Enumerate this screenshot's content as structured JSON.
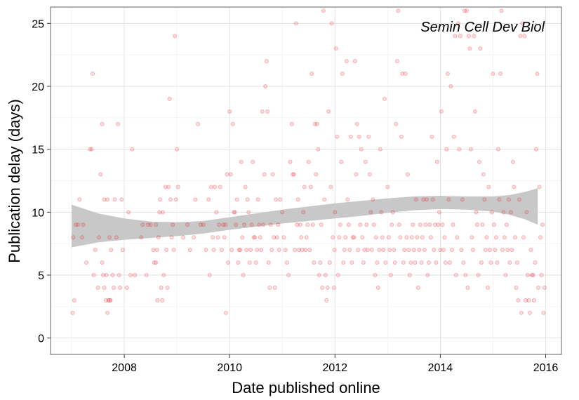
{
  "chart_data": {
    "type": "scatter",
    "title": "",
    "annotation": "Semin Cell Dev Biol",
    "xlabel": "Date published online",
    "ylabel": "Publication delay (days)",
    "xlim": [
      2006.6,
      2016.3
    ],
    "ylim": [
      -1.3,
      26.3
    ],
    "x_ticks": [
      2008,
      2010,
      2012,
      2014,
      2016
    ],
    "y_ticks": [
      0,
      5,
      10,
      15,
      20,
      25
    ],
    "grid": true,
    "point_color": "#e8202a",
    "smooth_band_color": "#c8c8c8",
    "smooth_band": [
      {
        "x": 2007.0,
        "lower": 7.2,
        "upper": 10.6
      },
      {
        "x": 2007.5,
        "lower": 7.6,
        "upper": 9.9
      },
      {
        "x": 2008.0,
        "lower": 7.8,
        "upper": 9.5
      },
      {
        "x": 2008.5,
        "lower": 7.95,
        "upper": 9.25
      },
      {
        "x": 2009.0,
        "lower": 8.1,
        "upper": 9.2
      },
      {
        "x": 2009.5,
        "lower": 8.3,
        "upper": 9.3
      },
      {
        "x": 2010.0,
        "lower": 8.6,
        "upper": 9.6
      },
      {
        "x": 2010.5,
        "lower": 8.85,
        "upper": 9.9
      },
      {
        "x": 2011.0,
        "lower": 9.1,
        "upper": 10.2
      },
      {
        "x": 2011.5,
        "lower": 9.3,
        "upper": 10.45
      },
      {
        "x": 2012.0,
        "lower": 9.5,
        "upper": 10.7
      },
      {
        "x": 2012.5,
        "lower": 9.7,
        "upper": 10.9
      },
      {
        "x": 2013.0,
        "lower": 9.95,
        "upper": 11.1
      },
      {
        "x": 2013.5,
        "lower": 10.15,
        "upper": 11.25
      },
      {
        "x": 2014.0,
        "lower": 10.25,
        "upper": 11.3
      },
      {
        "x": 2014.5,
        "lower": 10.2,
        "upper": 11.25
      },
      {
        "x": 2015.0,
        "lower": 10.05,
        "upper": 11.25
      },
      {
        "x": 2015.3,
        "lower": 9.8,
        "upper": 11.35
      },
      {
        "x": 2015.6,
        "lower": 9.45,
        "upper": 11.6
      },
      {
        "x": 2015.85,
        "lower": 9.0,
        "upper": 11.9
      }
    ],
    "points": [
      [
        2007.02,
        2
      ],
      [
        2007.05,
        3
      ],
      [
        2007.03,
        8
      ],
      [
        2007.08,
        9
      ],
      [
        2007.12,
        9
      ],
      [
        2007.15,
        11
      ],
      [
        2007.2,
        8
      ],
      [
        2007.22,
        9
      ],
      [
        2007.28,
        6
      ],
      [
        2007.35,
        15
      ],
      [
        2007.38,
        15
      ],
      [
        2007.4,
        21
      ],
      [
        2007.42,
        5
      ],
      [
        2007.45,
        7
      ],
      [
        2007.5,
        4
      ],
      [
        2007.52,
        8
      ],
      [
        2007.55,
        13
      ],
      [
        2007.58,
        17
      ],
      [
        2007.6,
        5
      ],
      [
        2007.62,
        4
      ],
      [
        2007.65,
        3
      ],
      [
        2007.68,
        2
      ],
      [
        2007.7,
        3
      ],
      [
        2007.72,
        3
      ],
      [
        2007.74,
        3
      ],
      [
        2007.75,
        7
      ],
      [
        2007.78,
        5
      ],
      [
        2007.8,
        4
      ],
      [
        2007.82,
        11
      ],
      [
        2007.85,
        8
      ],
      [
        2007.88,
        17
      ],
      [
        2007.9,
        5
      ],
      [
        2007.92,
        4
      ],
      [
        2007.95,
        11
      ],
      [
        2007.97,
        7
      ],
      [
        2007.62,
        11
      ],
      [
        2007.68,
        11
      ],
      [
        2007.72,
        8
      ],
      [
        2007.66,
        5
      ],
      [
        2007.58,
        6
      ],
      [
        2008.05,
        4
      ],
      [
        2008.08,
        10
      ],
      [
        2008.12,
        5
      ],
      [
        2008.15,
        15
      ],
      [
        2008.2,
        5
      ],
      [
        2008.32,
        8
      ],
      [
        2008.35,
        9
      ],
      [
        2008.42,
        5
      ],
      [
        2008.45,
        9
      ],
      [
        2008.5,
        9
      ],
      [
        2008.55,
        7
      ],
      [
        2008.57,
        6
      ],
      [
        2008.6,
        6
      ],
      [
        2008.62,
        7
      ],
      [
        2008.63,
        3
      ],
      [
        2008.65,
        8
      ],
      [
        2008.68,
        11
      ],
      [
        2008.7,
        4
      ],
      [
        2008.72,
        3
      ],
      [
        2008.75,
        5
      ],
      [
        2008.78,
        12
      ],
      [
        2008.8,
        7
      ],
      [
        2008.82,
        4
      ],
      [
        2008.84,
        12
      ],
      [
        2008.86,
        19
      ],
      [
        2008.88,
        11
      ],
      [
        2008.9,
        8
      ],
      [
        2008.92,
        9
      ],
      [
        2008.94,
        7
      ],
      [
        2008.96,
        24
      ],
      [
        2008.98,
        11
      ],
      [
        2009.0,
        15
      ],
      [
        2009.02,
        12
      ],
      [
        2008.6,
        9
      ],
      [
        2008.67,
        10
      ],
      [
        2008.73,
        10
      ],
      [
        2009.12,
        8
      ],
      [
        2009.2,
        9
      ],
      [
        2009.25,
        7
      ],
      [
        2009.32,
        8
      ],
      [
        2009.35,
        11
      ],
      [
        2009.4,
        17
      ],
      [
        2009.45,
        9
      ],
      [
        2009.5,
        9
      ],
      [
        2009.55,
        7
      ],
      [
        2009.6,
        11
      ],
      [
        2009.62,
        5
      ],
      [
        2009.65,
        12
      ],
      [
        2009.68,
        8
      ],
      [
        2009.7,
        7
      ],
      [
        2009.72,
        12
      ],
      [
        2009.75,
        10
      ],
      [
        2009.78,
        8
      ],
      [
        2009.8,
        9
      ],
      [
        2009.82,
        12
      ],
      [
        2009.85,
        7
      ],
      [
        2009.88,
        9
      ],
      [
        2009.9,
        8
      ],
      [
        2009.92,
        9
      ],
      [
        2009.93,
        2
      ],
      [
        2009.95,
        13
      ],
      [
        2009.97,
        6
      ],
      [
        2010.0,
        18
      ],
      [
        2010.02,
        13
      ],
      [
        2010.04,
        7
      ],
      [
        2010.06,
        17
      ],
      [
        2010.08,
        10
      ],
      [
        2010.1,
        10
      ],
      [
        2010.12,
        9
      ],
      [
        2010.14,
        11
      ],
      [
        2010.16,
        6
      ],
      [
        2010.18,
        7
      ],
      [
        2010.2,
        7
      ],
      [
        2010.22,
        14
      ],
      [
        2010.24,
        8
      ],
      [
        2010.26,
        5
      ],
      [
        2010.28,
        9
      ],
      [
        2010.3,
        12
      ],
      [
        2010.32,
        7
      ],
      [
        2010.34,
        11
      ],
      [
        2010.36,
        10
      ],
      [
        2010.38,
        6
      ],
      [
        2010.4,
        7
      ],
      [
        2010.42,
        9
      ],
      [
        2010.44,
        14
      ],
      [
        2010.46,
        8
      ],
      [
        2010.48,
        8
      ],
      [
        2010.5,
        6
      ],
      [
        2010.52,
        7
      ],
      [
        2010.54,
        11
      ],
      [
        2010.56,
        9
      ],
      [
        2010.58,
        8
      ],
      [
        2010.6,
        7
      ],
      [
        2010.62,
        18
      ],
      [
        2010.64,
        9
      ],
      [
        2010.66,
        13
      ],
      [
        2010.68,
        20
      ],
      [
        2010.7,
        22
      ],
      [
        2010.72,
        18
      ],
      [
        2010.74,
        6
      ],
      [
        2010.76,
        4
      ],
      [
        2010.78,
        9
      ],
      [
        2010.8,
        7
      ],
      [
        2010.82,
        13
      ],
      [
        2010.84,
        8
      ],
      [
        2010.86,
        4
      ],
      [
        2010.88,
        11
      ],
      [
        2010.9,
        8
      ],
      [
        2010.92,
        9
      ],
      [
        2010.94,
        7
      ],
      [
        2010.96,
        11
      ],
      [
        2011.0,
        10
      ],
      [
        2011.03,
        8
      ],
      [
        2011.06,
        7
      ],
      [
        2011.09,
        6
      ],
      [
        2011.12,
        5
      ],
      [
        2011.15,
        14
      ],
      [
        2011.18,
        17
      ],
      [
        2011.2,
        13
      ],
      [
        2011.22,
        13
      ],
      [
        2011.24,
        7
      ],
      [
        2011.26,
        25
      ],
      [
        2011.28,
        9
      ],
      [
        2011.3,
        11
      ],
      [
        2011.32,
        7
      ],
      [
        2011.34,
        9
      ],
      [
        2011.36,
        8
      ],
      [
        2011.38,
        7
      ],
      [
        2011.4,
        10
      ],
      [
        2011.42,
        12
      ],
      [
        2011.44,
        7
      ],
      [
        2011.46,
        8
      ],
      [
        2011.48,
        9
      ],
      [
        2011.5,
        14
      ],
      [
        2011.52,
        7
      ],
      [
        2011.54,
        12
      ],
      [
        2011.56,
        21
      ],
      [
        2011.58,
        9
      ],
      [
        2011.6,
        6
      ],
      [
        2011.62,
        17
      ],
      [
        2011.64,
        13
      ],
      [
        2011.66,
        17
      ],
      [
        2011.68,
        15
      ],
      [
        2011.7,
        5
      ],
      [
        2011.72,
        6
      ],
      [
        2011.74,
        9
      ],
      [
        2011.76,
        4
      ],
      [
        2011.78,
        26
      ],
      [
        2011.8,
        11
      ],
      [
        2011.82,
        5
      ],
      [
        2011.84,
        3
      ],
      [
        2011.86,
        4
      ],
      [
        2011.88,
        18
      ],
      [
        2011.9,
        6
      ],
      [
        2011.92,
        12
      ],
      [
        2011.94,
        25
      ],
      [
        2011.96,
        8
      ],
      [
        2011.98,
        4
      ],
      [
        2011.99,
        7
      ],
      [
        2012.0,
        10
      ],
      [
        2012.02,
        23
      ],
      [
        2012.04,
        16
      ],
      [
        2012.06,
        5
      ],
      [
        2012.08,
        8
      ],
      [
        2012.1,
        9
      ],
      [
        2012.12,
        14
      ],
      [
        2012.14,
        21
      ],
      [
        2012.16,
        6
      ],
      [
        2012.18,
        7
      ],
      [
        2012.2,
        8
      ],
      [
        2012.22,
        22
      ],
      [
        2012.24,
        11
      ],
      [
        2012.26,
        9
      ],
      [
        2012.28,
        7
      ],
      [
        2012.3,
        16
      ],
      [
        2012.32,
        6
      ],
      [
        2012.34,
        8
      ],
      [
        2012.36,
        8
      ],
      [
        2012.38,
        22
      ],
      [
        2012.4,
        13
      ],
      [
        2012.42,
        17
      ],
      [
        2012.44,
        7
      ],
      [
        2012.46,
        16
      ],
      [
        2012.48,
        9
      ],
      [
        2012.5,
        15
      ],
      [
        2012.52,
        8
      ],
      [
        2012.54,
        6
      ],
      [
        2012.56,
        7
      ],
      [
        2012.58,
        14
      ],
      [
        2012.6,
        9
      ],
      [
        2012.62,
        7
      ],
      [
        2012.64,
        16
      ],
      [
        2012.66,
        13
      ],
      [
        2012.68,
        10
      ],
      [
        2012.7,
        7
      ],
      [
        2012.72,
        11
      ],
      [
        2012.74,
        9
      ],
      [
        2012.76,
        5
      ],
      [
        2012.78,
        8
      ],
      [
        2012.8,
        6
      ],
      [
        2012.82,
        4
      ],
      [
        2012.84,
        7
      ],
      [
        2012.86,
        15
      ],
      [
        2012.88,
        10
      ],
      [
        2012.9,
        8
      ],
      [
        2012.92,
        7
      ],
      [
        2012.94,
        19
      ],
      [
        2012.96,
        6
      ],
      [
        2013.0,
        12
      ],
      [
        2013.02,
        8
      ],
      [
        2013.04,
        7
      ],
      [
        2013.06,
        5
      ],
      [
        2013.08,
        9
      ],
      [
        2013.1,
        10
      ],
      [
        2013.12,
        7
      ],
      [
        2013.14,
        6
      ],
      [
        2013.16,
        17
      ],
      [
        2013.18,
        22
      ],
      [
        2013.2,
        26
      ],
      [
        2013.22,
        9
      ],
      [
        2013.24,
        8
      ],
      [
        2013.26,
        16
      ],
      [
        2013.28,
        21
      ],
      [
        2013.3,
        6
      ],
      [
        2013.32,
        7
      ],
      [
        2013.34,
        21
      ],
      [
        2013.36,
        8
      ],
      [
        2013.38,
        13
      ],
      [
        2013.4,
        7
      ],
      [
        2013.42,
        5
      ],
      [
        2013.44,
        6
      ],
      [
        2013.46,
        8
      ],
      [
        2013.48,
        9
      ],
      [
        2013.5,
        7
      ],
      [
        2013.52,
        6
      ],
      [
        2013.54,
        11
      ],
      [
        2013.56,
        8
      ],
      [
        2013.58,
        4
      ],
      [
        2013.6,
        7
      ],
      [
        2013.62,
        9
      ],
      [
        2013.64,
        6
      ],
      [
        2013.66,
        8
      ],
      [
        2013.68,
        11
      ],
      [
        2013.7,
        7
      ],
      [
        2013.72,
        9
      ],
      [
        2013.74,
        11
      ],
      [
        2013.76,
        5
      ],
      [
        2013.78,
        6
      ],
      [
        2013.8,
        9
      ],
      [
        2013.82,
        8
      ],
      [
        2013.84,
        16
      ],
      [
        2013.86,
        11
      ],
      [
        2013.88,
        7
      ],
      [
        2013.9,
        9
      ],
      [
        2013.92,
        6
      ],
      [
        2013.94,
        14
      ],
      [
        2013.96,
        9
      ],
      [
        2013.98,
        10
      ],
      [
        2014.0,
        7
      ],
      [
        2014.02,
        18
      ],
      [
        2014.04,
        9
      ],
      [
        2014.06,
        7
      ],
      [
        2014.08,
        8
      ],
      [
        2014.1,
        6
      ],
      [
        2014.12,
        15
      ],
      [
        2014.14,
        21
      ],
      [
        2014.16,
        11
      ],
      [
        2014.18,
        6
      ],
      [
        2014.2,
        20
      ],
      [
        2014.22,
        7
      ],
      [
        2014.24,
        9
      ],
      [
        2014.26,
        16
      ],
      [
        2014.28,
        24
      ],
      [
        2014.3,
        5
      ],
      [
        2014.32,
        8
      ],
      [
        2014.34,
        25
      ],
      [
        2014.36,
        15
      ],
      [
        2014.38,
        24
      ],
      [
        2014.4,
        7
      ],
      [
        2014.42,
        11
      ],
      [
        2014.44,
        6
      ],
      [
        2014.46,
        26
      ],
      [
        2014.48,
        5
      ],
      [
        2014.5,
        26
      ],
      [
        2014.52,
        4
      ],
      [
        2014.54,
        24
      ],
      [
        2014.56,
        23
      ],
      [
        2014.58,
        15
      ],
      [
        2014.6,
        8
      ],
      [
        2014.62,
        7
      ],
      [
        2014.64,
        24
      ],
      [
        2014.66,
        18
      ],
      [
        2014.68,
        10
      ],
      [
        2014.7,
        9
      ],
      [
        2014.72,
        5
      ],
      [
        2014.74,
        14
      ],
      [
        2014.76,
        23
      ],
      [
        2014.78,
        6
      ],
      [
        2014.8,
        9
      ],
      [
        2014.82,
        13
      ],
      [
        2014.84,
        11
      ],
      [
        2014.86,
        7
      ],
      [
        2014.88,
        8
      ],
      [
        2014.9,
        4
      ],
      [
        2014.92,
        12
      ],
      [
        2014.94,
        7
      ],
      [
        2014.96,
        6
      ],
      [
        2014.98,
        10
      ],
      [
        2015.0,
        21
      ],
      [
        2015.02,
        9
      ],
      [
        2015.04,
        7
      ],
      [
        2015.06,
        8
      ],
      [
        2015.08,
        6
      ],
      [
        2015.1,
        15
      ],
      [
        2015.12,
        11
      ],
      [
        2015.14,
        21
      ],
      [
        2015.16,
        26
      ],
      [
        2015.18,
        7
      ],
      [
        2015.2,
        10
      ],
      [
        2015.22,
        8
      ],
      [
        2015.24,
        5
      ],
      [
        2015.26,
        9
      ],
      [
        2015.28,
        7
      ],
      [
        2015.3,
        11
      ],
      [
        2015.32,
        6
      ],
      [
        2015.34,
        10
      ],
      [
        2015.36,
        7
      ],
      [
        2015.38,
        14
      ],
      [
        2015.4,
        12
      ],
      [
        2015.42,
        8
      ],
      [
        2015.44,
        4
      ],
      [
        2015.46,
        6
      ],
      [
        2015.48,
        3
      ],
      [
        2015.5,
        11
      ],
      [
        2015.52,
        24
      ],
      [
        2015.54,
        2
      ],
      [
        2015.56,
        25
      ],
      [
        2015.58,
        8
      ],
      [
        2015.6,
        24
      ],
      [
        2015.62,
        3
      ],
      [
        2015.64,
        10
      ],
      [
        2015.66,
        5
      ],
      [
        2015.68,
        3
      ],
      [
        2015.7,
        2
      ],
      [
        2015.72,
        7
      ],
      [
        2015.74,
        5
      ],
      [
        2015.76,
        5
      ],
      [
        2015.78,
        3
      ],
      [
        2015.8,
        6
      ],
      [
        2015.82,
        15
      ],
      [
        2015.84,
        21
      ],
      [
        2015.86,
        4
      ],
      [
        2015.88,
        12
      ],
      [
        2015.9,
        8
      ],
      [
        2015.92,
        5
      ],
      [
        2015.94,
        9
      ],
      [
        2015.96,
        2
      ],
      [
        2015.98,
        4
      ]
    ]
  }
}
